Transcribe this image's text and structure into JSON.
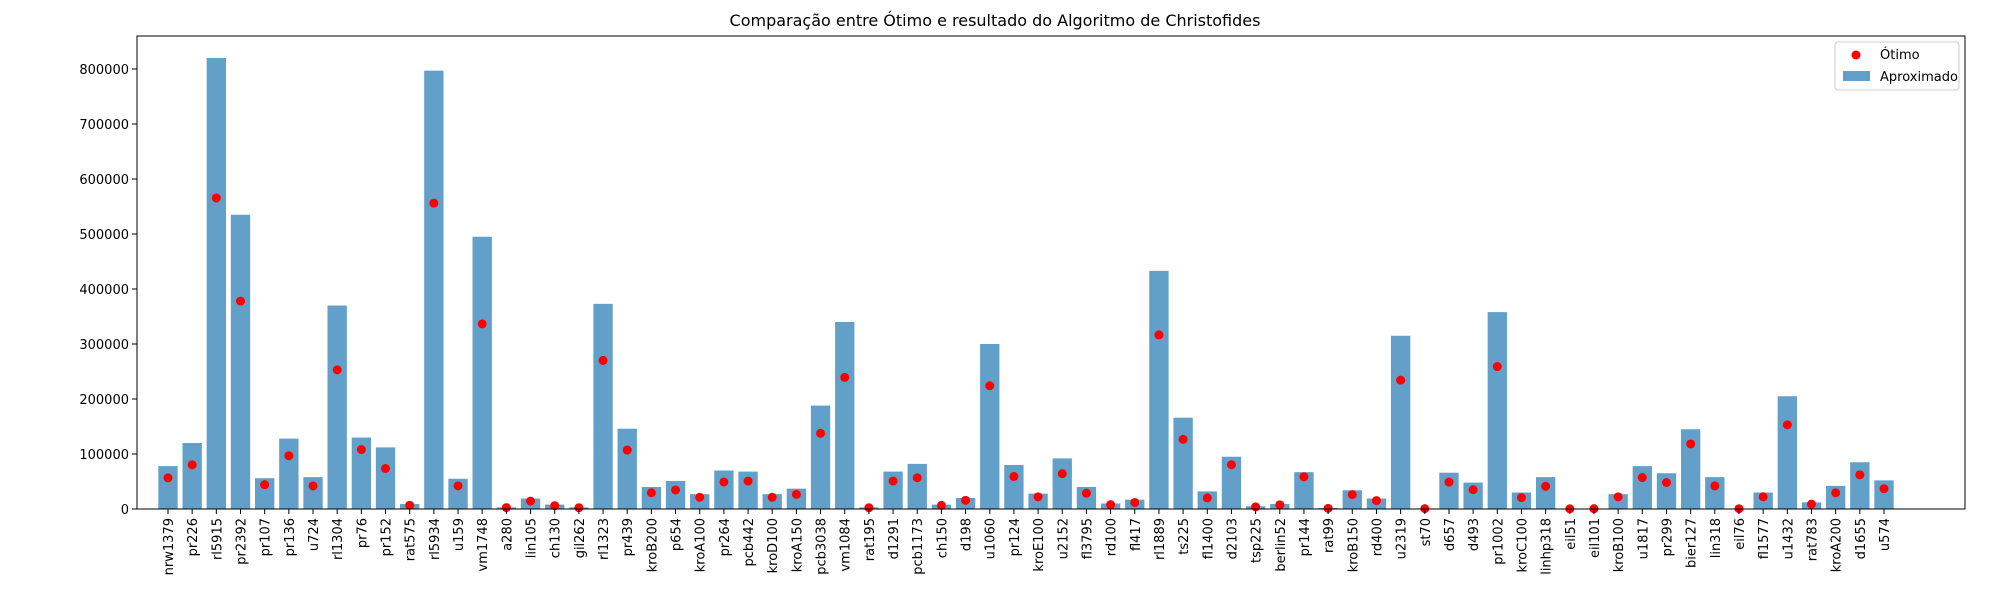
{
  "chart_data": {
    "type": "bar",
    "title": "Comparação entre Ótimo e resultado do Algoritmo de Christofides",
    "xlabel": "",
    "ylabel": "",
    "ylim": [
      0,
      860000
    ],
    "yticks": [
      0,
      100000,
      200000,
      300000,
      400000,
      500000,
      600000,
      700000,
      800000
    ],
    "ytick_labels": [
      "0",
      "100000",
      "200000",
      "300000",
      "400000",
      "500000",
      "600000",
      "700000",
      "800000"
    ],
    "legend_position": "top-right",
    "categories": [
      "nrw1379",
      "pr226",
      "rl5915",
      "pr2392",
      "pr107",
      "pr136",
      "u724",
      "rl1304",
      "pr76",
      "pr152",
      "rat575",
      "rl5934",
      "u159",
      "vm1748",
      "a280",
      "lin105",
      "ch130",
      "gil262",
      "rl1323",
      "pr439",
      "kroB200",
      "p654",
      "kroA100",
      "pr264",
      "pcb442",
      "kroD100",
      "kroA150",
      "pcb3038",
      "vm1084",
      "rat195",
      "d1291",
      "pcb1173",
      "ch150",
      "d198",
      "u1060",
      "pr124",
      "kroE100",
      "u2152",
      "fl3795",
      "rd100",
      "fl417",
      "rl1889",
      "ts225",
      "fl1400",
      "d2103",
      "tsp225",
      "berlin52",
      "pr144",
      "rat99",
      "kroB150",
      "rd400",
      "u2319",
      "st70",
      "d657",
      "d493",
      "pr1002",
      "kroC100",
      "linhp318",
      "eil51",
      "eil101",
      "kroB100",
      "u1817",
      "pr299",
      "bier127",
      "lin318",
      "eil76",
      "fl1577",
      "u1432",
      "rat783",
      "kroA200",
      "d1655",
      "u574"
    ],
    "series": [
      {
        "name": "Aproximado",
        "kind": "bar",
        "color": "#1f77b4",
        "values": [
          78000,
          120000,
          820000,
          535000,
          56000,
          128000,
          58000,
          370000,
          130000,
          112000,
          9000,
          797000,
          55000,
          495000,
          3000,
          19000,
          8000,
          3000,
          373000,
          146000,
          40000,
          51000,
          27000,
          70000,
          68000,
          27000,
          37000,
          188000,
          340000,
          3000,
          68000,
          82000,
          8000,
          20000,
          300000,
          80000,
          28000,
          92000,
          40000,
          10000,
          17000,
          433000,
          166000,
          32000,
          95000,
          5000,
          9000,
          67000,
          2000,
          34000,
          19000,
          315000,
          1000,
          66000,
          48000,
          358000,
          30000,
          58000,
          500,
          800,
          27000,
          78000,
          65000,
          145000,
          58000,
          600,
          30000,
          205000,
          12000,
          42000,
          85000,
          52000
        ]
      },
      {
        "name": "Ótimo",
        "kind": "scatter",
        "color": "#ff0000",
        "values": [
          56638,
          80369,
          565530,
          378032,
          44303,
          96772,
          41910,
          252948,
          108159,
          73682,
          6773,
          556045,
          42080,
          336556,
          2579,
          14379,
          6110,
          2378,
          270199,
          107217,
          29437,
          34643,
          21282,
          49135,
          50778,
          21294,
          26524,
          137694,
          239297,
          2323,
          50801,
          56892,
          6528,
          15780,
          224094,
          59030,
          22068,
          64253,
          28772,
          7910,
          11861,
          316536,
          126643,
          20127,
          80450,
          3916,
          7542,
          58537,
          1211,
          26130,
          15281,
          234256,
          675,
          48912,
          35002,
          259045,
          20749,
          41345,
          426,
          629,
          22141,
          57201,
          48191,
          118282,
          42029,
          538,
          22249,
          152970,
          8806,
          29368,
          62128,
          36905
        ]
      }
    ]
  }
}
